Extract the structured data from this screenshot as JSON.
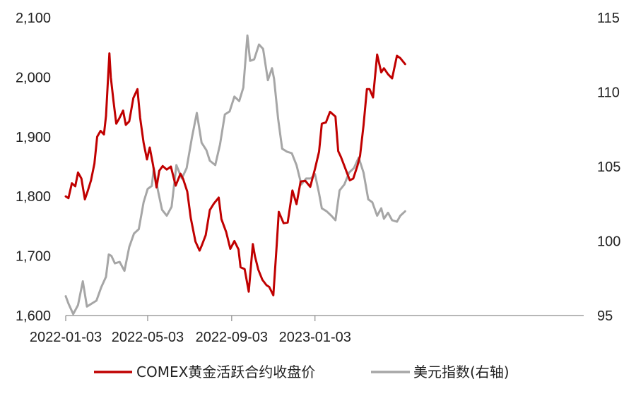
{
  "chart_data": {
    "type": "line",
    "title": "",
    "grid": false,
    "legend_position": "bottom",
    "x_ticks": [
      "2022-01-03",
      "2022-05-03",
      "2022-09-03",
      "2023-01-03"
    ],
    "xlim": [
      "2022-01-03",
      "2023-05-15"
    ],
    "y_left": {
      "ylim": [
        1600,
        2100
      ],
      "ticks": [
        "1,600",
        "1,700",
        "1,800",
        "1,900",
        "2,000",
        "2,100"
      ]
    },
    "y_right": {
      "ylim": [
        95,
        115
      ],
      "ticks": [
        "95",
        "100",
        "105",
        "110",
        "115"
      ]
    },
    "series": [
      {
        "name": "COMEX黄金活跃合约收盘价",
        "axis": "left",
        "color": "#C00000",
        "points": [
          [
            "2022-01-03",
            1800
          ],
          [
            "2022-01-07",
            1797
          ],
          [
            "2022-01-12",
            1822
          ],
          [
            "2022-01-17",
            1817
          ],
          [
            "2022-01-21",
            1840
          ],
          [
            "2022-01-26",
            1830
          ],
          [
            "2022-01-31",
            1795
          ],
          [
            "2022-02-04",
            1808
          ],
          [
            "2022-02-09",
            1827
          ],
          [
            "2022-02-14",
            1855
          ],
          [
            "2022-02-18",
            1900
          ],
          [
            "2022-02-23",
            1910
          ],
          [
            "2022-02-28",
            1904
          ],
          [
            "2022-03-03",
            1935
          ],
          [
            "2022-03-08",
            2040
          ],
          [
            "2022-03-10",
            2000
          ],
          [
            "2022-03-14",
            1960
          ],
          [
            "2022-03-18",
            1922
          ],
          [
            "2022-03-22",
            1930
          ],
          [
            "2022-03-28",
            1944
          ],
          [
            "2022-04-01",
            1920
          ],
          [
            "2022-04-06",
            1926
          ],
          [
            "2022-04-12",
            1965
          ],
          [
            "2022-04-18",
            1980
          ],
          [
            "2022-04-22",
            1932
          ],
          [
            "2022-04-27",
            1890
          ],
          [
            "2022-05-02",
            1862
          ],
          [
            "2022-05-06",
            1882
          ],
          [
            "2022-05-11",
            1852
          ],
          [
            "2022-05-16",
            1815
          ],
          [
            "2022-05-20",
            1843
          ],
          [
            "2022-05-25",
            1851
          ],
          [
            "2022-05-31",
            1845
          ],
          [
            "2022-06-06",
            1850
          ],
          [
            "2022-06-13",
            1818
          ],
          [
            "2022-06-20",
            1838
          ],
          [
            "2022-06-24",
            1829
          ],
          [
            "2022-06-30",
            1808
          ],
          [
            "2022-07-05",
            1764
          ],
          [
            "2022-07-12",
            1724
          ],
          [
            "2022-07-18",
            1709
          ],
          [
            "2022-07-21",
            1717
          ],
          [
            "2022-07-27",
            1735
          ],
          [
            "2022-08-02",
            1777
          ],
          [
            "2022-08-08",
            1788
          ],
          [
            "2022-08-15",
            1798
          ],
          [
            "2022-08-19",
            1762
          ],
          [
            "2022-08-26",
            1740
          ],
          [
            "2022-09-01",
            1712
          ],
          [
            "2022-09-07",
            1725
          ],
          [
            "2022-09-13",
            1711
          ],
          [
            "2022-09-16",
            1681
          ],
          [
            "2022-09-22",
            1678
          ],
          [
            "2022-09-28",
            1640
          ],
          [
            "2022-10-04",
            1720
          ],
          [
            "2022-10-07",
            1700
          ],
          [
            "2022-10-12",
            1677
          ],
          [
            "2022-10-18",
            1660
          ],
          [
            "2022-10-24",
            1651
          ],
          [
            "2022-10-28",
            1648
          ],
          [
            "2022-11-03",
            1634
          ],
          [
            "2022-11-08",
            1719
          ],
          [
            "2022-11-11",
            1774
          ],
          [
            "2022-11-18",
            1755
          ],
          [
            "2022-11-24",
            1756
          ],
          [
            "2022-12-01",
            1810
          ],
          [
            "2022-12-07",
            1787
          ],
          [
            "2022-12-13",
            1825
          ],
          [
            "2022-12-20",
            1826
          ],
          [
            "2022-12-27",
            1816
          ],
          [
            "2023-01-03",
            1846
          ],
          [
            "2023-01-09",
            1875
          ],
          [
            "2023-01-13",
            1922
          ],
          [
            "2023-01-19",
            1924
          ],
          [
            "2023-01-25",
            1942
          ],
          [
            "2023-02-02",
            1934
          ],
          [
            "2023-02-06",
            1876
          ],
          [
            "2023-02-10",
            1866
          ],
          [
            "2023-02-16",
            1848
          ],
          [
            "2023-02-23",
            1827
          ],
          [
            "2023-02-28",
            1830
          ],
          [
            "2023-03-06",
            1851
          ],
          [
            "2023-03-10",
            1868
          ],
          [
            "2023-03-15",
            1919
          ],
          [
            "2023-03-20",
            1980
          ],
          [
            "2023-03-24",
            1980
          ],
          [
            "2023-03-29",
            1966
          ],
          [
            "2023-04-04",
            2038
          ],
          [
            "2023-04-10",
            2008
          ],
          [
            "2023-04-14",
            2015
          ],
          [
            "2023-04-20",
            2005
          ],
          [
            "2023-04-26",
            1998
          ],
          [
            "2023-05-03",
            2036
          ],
          [
            "2023-05-08",
            2032
          ],
          [
            "2023-05-15",
            2022
          ]
        ]
      },
      {
        "name": "美元指数(右轴)",
        "axis": "right",
        "color": "#A6A6A6",
        "points": [
          [
            "2022-01-03",
            96.3
          ],
          [
            "2022-01-07",
            95.8
          ],
          [
            "2022-01-14",
            95.1
          ],
          [
            "2022-01-21",
            95.7
          ],
          [
            "2022-01-28",
            97.3
          ],
          [
            "2022-02-03",
            95.6
          ],
          [
            "2022-02-10",
            95.8
          ],
          [
            "2022-02-17",
            96.0
          ],
          [
            "2022-02-24",
            96.9
          ],
          [
            "2022-03-03",
            97.6
          ],
          [
            "2022-03-07",
            99.1
          ],
          [
            "2022-03-11",
            99.0
          ],
          [
            "2022-03-16",
            98.5
          ],
          [
            "2022-03-23",
            98.6
          ],
          [
            "2022-03-30",
            98.0
          ],
          [
            "2022-04-06",
            99.6
          ],
          [
            "2022-04-13",
            100.5
          ],
          [
            "2022-04-20",
            100.8
          ],
          [
            "2022-04-27",
            102.6
          ],
          [
            "2022-05-03",
            103.5
          ],
          [
            "2022-05-09",
            103.7
          ],
          [
            "2022-05-12",
            104.9
          ],
          [
            "2022-05-18",
            103.4
          ],
          [
            "2022-05-24",
            102.1
          ],
          [
            "2022-05-31",
            101.7
          ],
          [
            "2022-06-07",
            102.3
          ],
          [
            "2022-06-14",
            105.1
          ],
          [
            "2022-06-22",
            104.2
          ],
          [
            "2022-06-29",
            104.9
          ],
          [
            "2022-07-07",
            107.0
          ],
          [
            "2022-07-14",
            108.6
          ],
          [
            "2022-07-21",
            106.6
          ],
          [
            "2022-07-28",
            106.1
          ],
          [
            "2022-08-02",
            105.4
          ],
          [
            "2022-08-10",
            105.1
          ],
          [
            "2022-08-17",
            106.5
          ],
          [
            "2022-08-24",
            108.5
          ],
          [
            "2022-08-31",
            108.7
          ],
          [
            "2022-09-07",
            109.7
          ],
          [
            "2022-09-14",
            109.4
          ],
          [
            "2022-09-20",
            110.3
          ],
          [
            "2022-09-26",
            113.8
          ],
          [
            "2022-09-30",
            112.1
          ],
          [
            "2022-10-06",
            112.2
          ],
          [
            "2022-10-13",
            113.2
          ],
          [
            "2022-10-19",
            112.9
          ],
          [
            "2022-10-26",
            110.8
          ],
          [
            "2022-11-01",
            111.6
          ],
          [
            "2022-11-04",
            110.9
          ],
          [
            "2022-11-10",
            108.2
          ],
          [
            "2022-11-16",
            106.2
          ],
          [
            "2022-11-23",
            106.0
          ],
          [
            "2022-11-30",
            105.9
          ],
          [
            "2022-12-07",
            105.1
          ],
          [
            "2022-12-14",
            103.8
          ],
          [
            "2022-12-21",
            104.2
          ],
          [
            "2022-12-28",
            104.2
          ],
          [
            "2023-01-03",
            104.5
          ],
          [
            "2023-01-09",
            103.2
          ],
          [
            "2023-01-13",
            102.2
          ],
          [
            "2023-01-20",
            102.0
          ],
          [
            "2023-01-27",
            101.7
          ],
          [
            "2023-02-02",
            101.4
          ],
          [
            "2023-02-08",
            103.4
          ],
          [
            "2023-02-15",
            103.8
          ],
          [
            "2023-02-22",
            104.6
          ],
          [
            "2023-03-01",
            104.9
          ],
          [
            "2023-03-08",
            105.6
          ],
          [
            "2023-03-15",
            104.6
          ],
          [
            "2023-03-22",
            102.8
          ],
          [
            "2023-03-28",
            102.6
          ],
          [
            "2023-04-04",
            101.7
          ],
          [
            "2023-04-10",
            102.2
          ],
          [
            "2023-04-14",
            101.5
          ],
          [
            "2023-04-20",
            101.9
          ],
          [
            "2023-04-26",
            101.4
          ],
          [
            "2023-05-03",
            101.3
          ],
          [
            "2023-05-08",
            101.7
          ],
          [
            "2023-05-15",
            102.0
          ]
        ]
      }
    ]
  }
}
